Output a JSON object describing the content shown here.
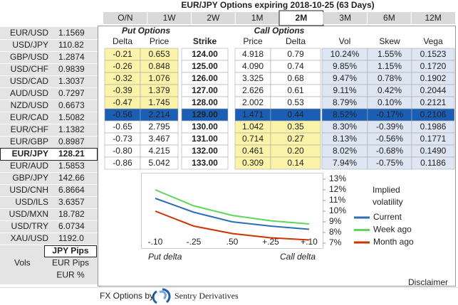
{
  "title": "EUR/JPY Options expiring 2018-10-25 (63 Days)",
  "tabs": {
    "items": [
      "O/N",
      "1W",
      "2W",
      "1M",
      "2M",
      "3M",
      "6M",
      "12M"
    ],
    "active": 4
  },
  "pairs": {
    "selected": 10,
    "items": [
      {
        "name": "EUR/USD",
        "price": "1.1569",
        "color": "#1f9a1f"
      },
      {
        "name": "USD/JPY",
        "price": "110.82",
        "color": "#222222"
      },
      {
        "name": "GBP/USD",
        "price": "1.2874",
        "color": "#222222"
      },
      {
        "name": "USD/CHF",
        "price": "0.9839",
        "color": "#222222"
      },
      {
        "name": "USD/CAD",
        "price": "1.3037",
        "color": "#222222"
      },
      {
        "name": "AUD/USD",
        "price": "0.7297",
        "color": "#1f9a1f"
      },
      {
        "name": "NZD/USD",
        "price": "0.6673",
        "color": "#1f9a1f"
      },
      {
        "name": "EUR/CAD",
        "price": "1.5082",
        "color": "#1f9a1f"
      },
      {
        "name": "EUR/CHF",
        "price": "1.1382",
        "color": "#1f9a1f"
      },
      {
        "name": "EUR/GBP",
        "price": "0.8987",
        "color": "#1f9a1f"
      },
      {
        "name": "EUR/JPY",
        "price": "128.21",
        "color": "#222222"
      },
      {
        "name": "EUR/AUD",
        "price": "1.5853",
        "color": "#e02020"
      },
      {
        "name": "GBP/JPY",
        "price": "142.66",
        "color": "#222222"
      },
      {
        "name": "USD/CNH",
        "price": "6.8664",
        "color": "#e02020"
      },
      {
        "name": "USD/ILS",
        "price": "3.6357",
        "color": "#222222"
      },
      {
        "name": "USD/MXN",
        "price": "18.782",
        "color": "#222222"
      },
      {
        "name": "USD/TRY",
        "price": "6.0734",
        "color": "#222222"
      },
      {
        "name": "XAU/USD",
        "price": "1192.0",
        "color": "#222222"
      }
    ]
  },
  "units": {
    "selected": "JPY Pips",
    "label": "Vols",
    "others": [
      "EUR Pips",
      "EUR %"
    ]
  },
  "table": {
    "group_headers": [
      "Put Options",
      "Call Options"
    ],
    "columns": [
      "Delta",
      "Price",
      "Strike",
      "Price",
      "Delta",
      "Vol",
      "Skew",
      "Vega"
    ],
    "selected_row": 5,
    "rows": [
      [
        "-0.21",
        "0.653",
        "124.00",
        "4.918",
        "0.79",
        "10.24%",
        "1.55%",
        "0.1523"
      ],
      [
        "-0.26",
        "0.848",
        "125.00",
        "4.090",
        "0.74",
        "9.85%",
        "1.15%",
        "0.1720"
      ],
      [
        "-0.32",
        "1.076",
        "126.00",
        "3.325",
        "0.68",
        "9.47%",
        "0.78%",
        "0.1902"
      ],
      [
        "-0.39",
        "1.379",
        "127.00",
        "2.626",
        "0.61",
        "9.11%",
        "0.42%",
        "0.2044"
      ],
      [
        "-0.47",
        "1.745",
        "128.00",
        "2.002",
        "0.53",
        "8.79%",
        "0.10%",
        "0.2121"
      ],
      [
        "-0.56",
        "2.214",
        "129.00",
        "1.471",
        "0.44",
        "8.52%",
        "-0.17%",
        "0.2106"
      ],
      [
        "-0.65",
        "2.795",
        "130.00",
        "1.042",
        "0.35",
        "8.30%",
        "-0.39%",
        "0.1986"
      ],
      [
        "-0.73",
        "3.467",
        "131.00",
        "0.714",
        "0.27",
        "8.13%",
        "-0.56%",
        "0.1771"
      ],
      [
        "-0.80",
        "4.215",
        "132.00",
        "0.461",
        "0.20",
        "8.02%",
        "-0.68%",
        "0.1490"
      ],
      [
        "-0.86",
        "5.042",
        "133.00",
        "0.309",
        "0.14",
        "7.94%",
        "-0.75%",
        "0.1186"
      ]
    ]
  },
  "chart_data": {
    "type": "line",
    "categories": [
      "-.10",
      "-.25",
      ".50",
      "+.25",
      "+.10"
    ],
    "xlabel_left": "Put delta",
    "xlabel_right": "Call delta",
    "legend_title": [
      "Implied",
      "volatility"
    ],
    "ylim": [
      7,
      13
    ],
    "yticks": [
      {
        "value": 13,
        "label": "13%"
      },
      {
        "value": 12,
        "label": "12%"
      },
      {
        "value": 11,
        "label": "11%"
      },
      {
        "value": 10,
        "label": "10%"
      },
      {
        "value": 9,
        "label": "9%"
      },
      {
        "value": 8,
        "label": "8%"
      },
      {
        "value": 7,
        "label": "7%"
      }
    ],
    "series": [
      {
        "name": "Current",
        "color": "#2c6db5",
        "values": [
          11.2,
          9.9,
          9.0,
          8.6,
          8.3
        ]
      },
      {
        "name": "Week ago",
        "color": "#5cd65c",
        "values": [
          12.0,
          10.5,
          9.6,
          9.1,
          8.8
        ]
      },
      {
        "name": "Month ago",
        "color": "#cc3300",
        "values": [
          10.0,
          8.6,
          7.9,
          7.5,
          7.3
        ]
      }
    ]
  },
  "footer": {
    "prefix": "FX Options by",
    "brand": "Sentry Derivatives",
    "disclaimer": "Disclaimer"
  }
}
